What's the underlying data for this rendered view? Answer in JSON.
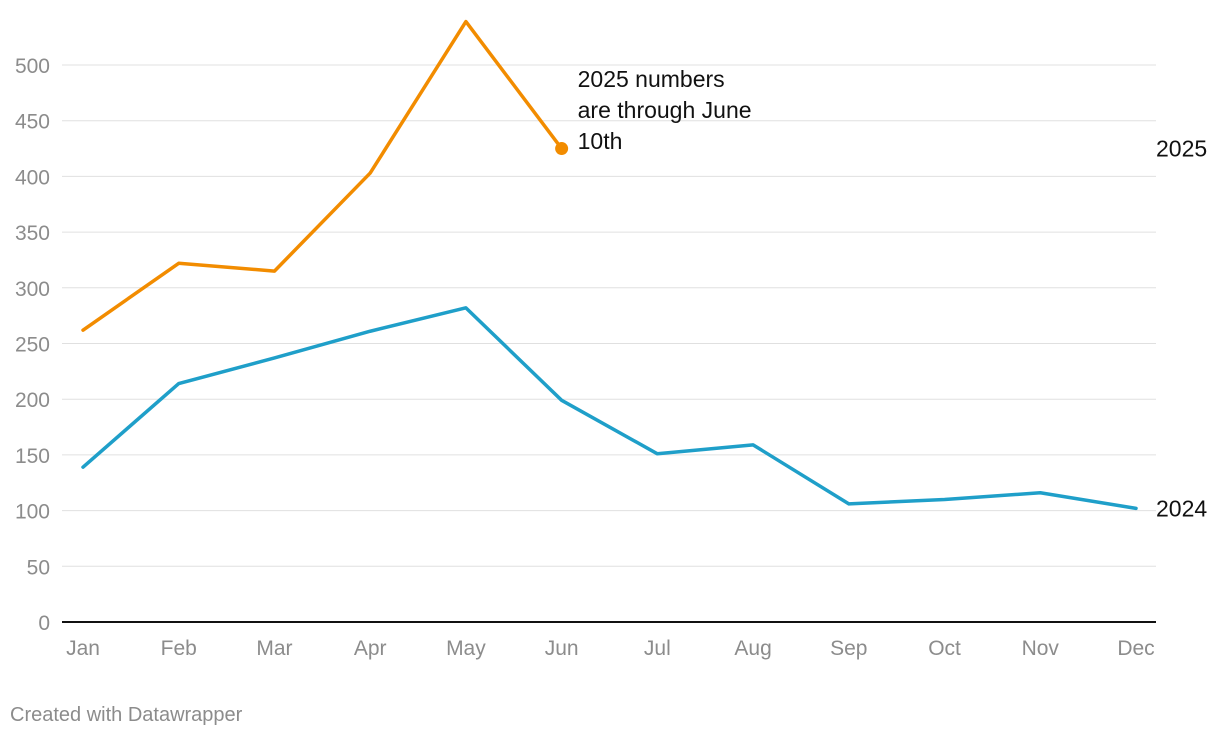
{
  "chart_data": {
    "type": "line",
    "title": "",
    "xlabel": "",
    "ylabel": "",
    "categories": [
      "Jan",
      "Feb",
      "Mar",
      "Apr",
      "May",
      "Jun",
      "Jul",
      "Aug",
      "Sep",
      "Oct",
      "Nov",
      "Dec"
    ],
    "ylim": [
      0,
      550
    ],
    "y_ticks": [
      0,
      50,
      100,
      150,
      200,
      250,
      300,
      350,
      400,
      450,
      500
    ],
    "y_tick_labels": [
      "0",
      "50",
      "100",
      "150",
      "200",
      "250",
      "300",
      "350",
      "400",
      "450",
      "500"
    ],
    "grid": true,
    "series": [
      {
        "name": "2025",
        "color": "#f28c00",
        "values": [
          262,
          322,
          315,
          403,
          539,
          425,
          null,
          null,
          null,
          null,
          null,
          null
        ],
        "end_marker": true
      },
      {
        "name": "2024",
        "color": "#1f9fc9",
        "values": [
          139,
          214,
          237,
          261,
          282,
          199,
          151,
          159,
          106,
          110,
          116,
          102
        ],
        "end_marker": false
      }
    ],
    "annotation": {
      "lines": [
        "2025 numbers",
        "are through June",
        "10th"
      ],
      "anchor_category": "Jun"
    }
  },
  "footer": {
    "credit": "Created with Datawrapper"
  }
}
